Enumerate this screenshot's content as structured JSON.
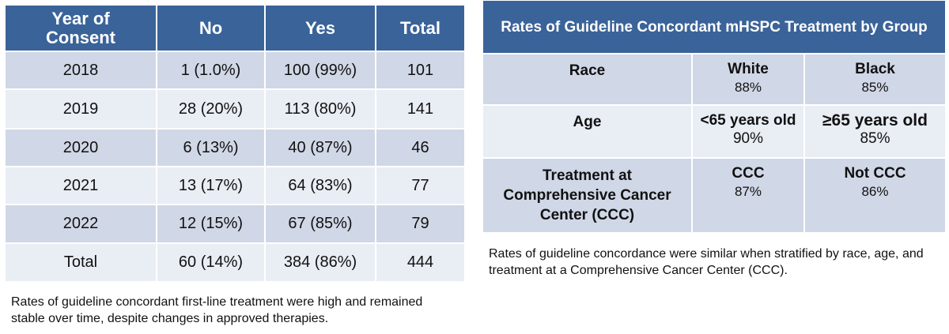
{
  "left_table": {
    "header": [
      "Year of Consent",
      "No",
      "Yes",
      "Total"
    ],
    "rows": [
      [
        "2018",
        "1 (1.0%)",
        "100 (99%)",
        "101"
      ],
      [
        "2019",
        "28 (20%)",
        "113 (80%)",
        "141"
      ],
      [
        "2020",
        "6 (13%)",
        "40 (87%)",
        "46"
      ],
      [
        "2021",
        "13 (17%)",
        "64 (83%)",
        "77"
      ],
      [
        "2022",
        "12 (15%)",
        "67 (85%)",
        "79"
      ],
      [
        "Total",
        "60 (14%)",
        "384 (86%)",
        "444"
      ]
    ]
  },
  "left_caption": "Rates of guideline concordant first-line treatment were high and remained stable over time, despite changes in approved therapies.",
  "right_table": {
    "title": "Rates of Guideline Concordant mHSPC Treatment by Group",
    "rows": [
      {
        "label": "Race",
        "cells": [
          {
            "group": "White",
            "rate": "88%"
          },
          {
            "group": "Black",
            "rate": "85%"
          }
        ]
      },
      {
        "label": "Age",
        "cells": [
          {
            "group": "<65 years old",
            "rate": "90%"
          },
          {
            "group": "≥65 years old",
            "rate": "85%"
          }
        ]
      },
      {
        "label": "Treatment at Comprehensive Cancer Center (CCC)",
        "cells": [
          {
            "group": "CCC",
            "rate": "87%"
          },
          {
            "group": "Not CCC",
            "rate": "86%"
          }
        ]
      }
    ]
  },
  "right_caption": "Rates of guideline concordance were similar when stratified by race, age, and treatment at a Comprehensive Cancer Center (CCC)."
}
